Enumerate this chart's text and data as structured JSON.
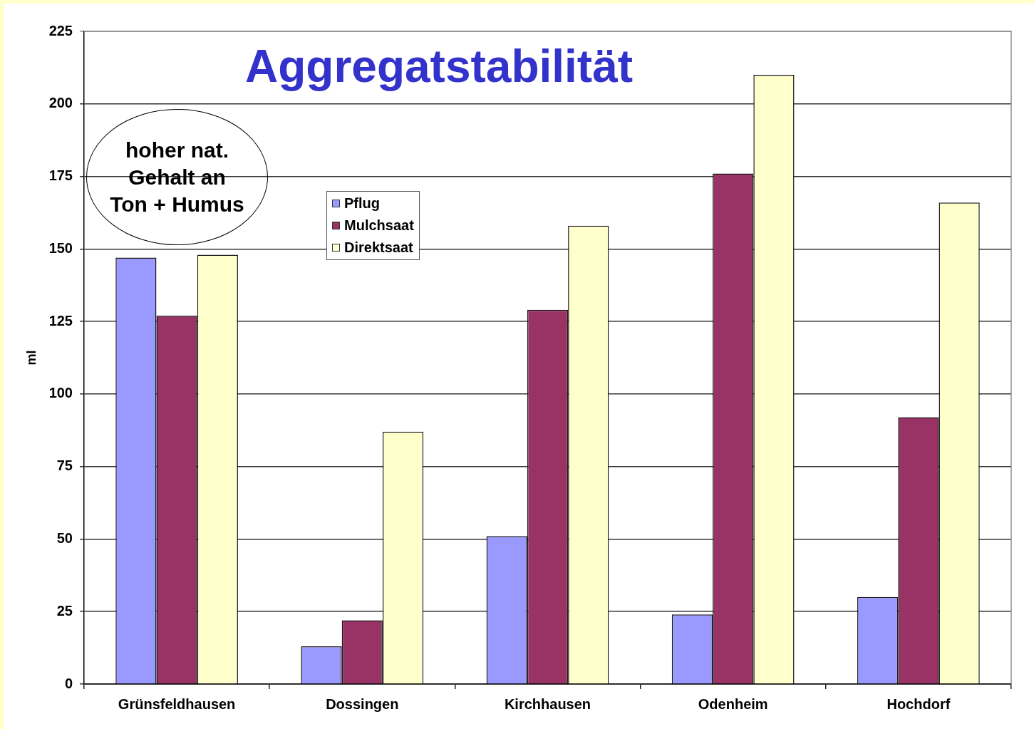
{
  "chart_data": {
    "type": "bar",
    "title": "Aggregatstabilität",
    "ylabel": "ml",
    "categories": [
      "Grünsfeldhausen",
      "Dossingen",
      "Kirchhausen",
      "Odenheim",
      "Hochdorf"
    ],
    "series": [
      {
        "name": "Pflug",
        "color": "#9999ff",
        "values": [
          147,
          13,
          51,
          24,
          30
        ]
      },
      {
        "name": "Mulchsaat",
        "color": "#993366",
        "values": [
          127,
          22,
          129,
          176,
          92
        ]
      },
      {
        "name": "Direktsaat",
        "color": "#ffffcc",
        "values": [
          148,
          87,
          158,
          210,
          166
        ]
      }
    ],
    "ylim": [
      0,
      225
    ],
    "yticks": [
      0,
      25,
      50,
      75,
      100,
      125,
      150,
      175,
      200,
      225
    ],
    "grid": "y",
    "legend": "top left",
    "annotations": [
      "hoher nat.\nGehalt an\nTon + Humus"
    ]
  }
}
